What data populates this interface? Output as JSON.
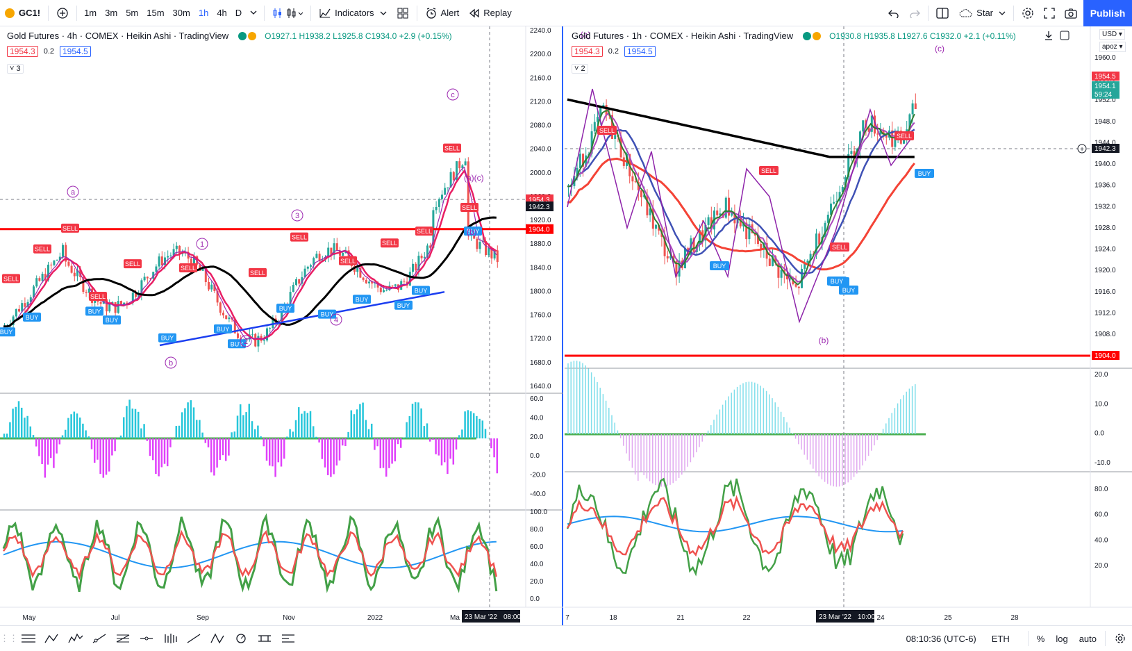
{
  "toolbar": {
    "symbol": "GC1!",
    "timeframes": [
      "1m",
      "3m",
      "5m",
      "15m",
      "30m",
      "1h",
      "4h",
      "D"
    ],
    "active_timeframe": "1h",
    "indicators_label": "Indicators",
    "alert_label": "Alert",
    "replay_label": "Replay",
    "star_label": "Star",
    "publish_label": "Publish"
  },
  "left_chart": {
    "title": "Gold Futures · 4h · COMEX · Heikin Ashi · TradingView",
    "ohlc": "O1927.1 H1938.2 L1925.8 C1934.0 +2.9 (+0.15%)",
    "bid": "1954.3",
    "spread": "0.2",
    "ask": "1954.5",
    "collapse_count": "3",
    "price_labels": [
      "2240.0",
      "2200.0",
      "2160.0",
      "2120.0",
      "2080.0",
      "2040.0",
      "2000.0",
      "1960.0",
      "1920.0",
      "1880.0",
      "1840.0",
      "1800.0",
      "1760.0",
      "1720.0",
      "1680.0",
      "1640.0"
    ],
    "price_tags": {
      "bid": "1954.3",
      "current": "1942.3",
      "level": "1904.0"
    },
    "osc1_labels": [
      "60.0",
      "40.0",
      "20.0",
      "0.0",
      "-20.0",
      "-40.0"
    ],
    "osc2_labels": [
      "100.0",
      "80.0",
      "60.0",
      "40.0",
      "20.0",
      "0.0"
    ],
    "time_labels": [
      "May",
      "Jul",
      "Sep",
      "Nov",
      "2022",
      "Ma"
    ],
    "cursor_time": "23 Mar '22",
    "cursor_clock": "08:00",
    "wave_labels": [
      "a",
      "b",
      "c",
      "1",
      "2",
      "3",
      "4"
    ],
    "wave_labels_b": [
      "(a)(c)",
      "(b)"
    ]
  },
  "right_chart": {
    "title": "Gold Futures · 1h · COMEX · Heikin Ashi · TradingView",
    "ohlc": "O1930.8 H1935.8 L1927.6 C1932.0 +2.1 (+0.11%)",
    "bid": "1954.3",
    "spread": "0.2",
    "ask": "1954.5",
    "collapse_count": "2",
    "currency": "USD",
    "scale_mode": "apoz",
    "price_labels": [
      "1960.0",
      "1956.0",
      "1952.0",
      "1948.0",
      "1944.0",
      "1940.0",
      "1936.0",
      "1932.0",
      "1928.0",
      "1924.0",
      "1920.0",
      "1916.0",
      "1912.0",
      "1908.0"
    ],
    "price_tags": {
      "ask": "1954.5",
      "last": "1954.1",
      "countdown": "59:24",
      "current": "1942.3",
      "level": "1904.0"
    },
    "osc1_labels": [
      "20.0",
      "10.0",
      "0.0",
      "-10.0"
    ],
    "osc2_labels": [
      "80.0",
      "60.0",
      "40.0",
      "20.0"
    ],
    "time_labels": [
      "7",
      "18",
      "21",
      "22",
      "24",
      "25",
      "28"
    ],
    "cursor_time": "23 Mar '22",
    "cursor_clock": "10:00",
    "wave_labels": [
      "(a)",
      "(b)",
      "(c)"
    ]
  },
  "signals": {
    "buy": "BUY",
    "sell": "SELL"
  },
  "status": {
    "clock": "08:10:36 (UTC-6)",
    "session": "ETH",
    "percent": "%",
    "log": "log",
    "auto": "auto"
  },
  "colors": {
    "accent": "#2962ff",
    "red": "#f23645",
    "green": "#089981",
    "sell_bg": "#f23645",
    "buy_bg": "#2196f3"
  }
}
